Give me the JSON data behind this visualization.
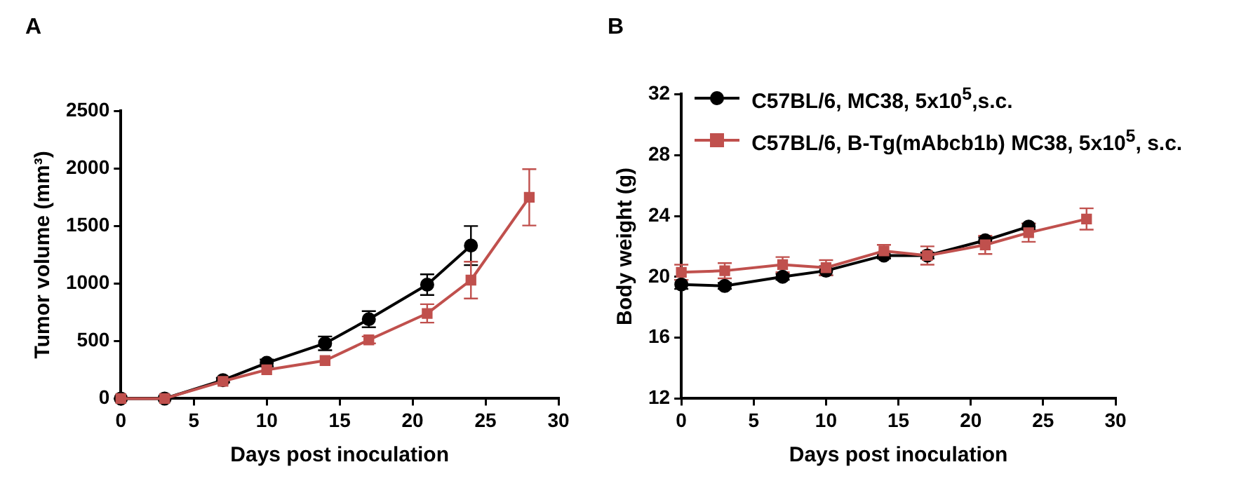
{
  "chart_data": [
    {
      "type": "line",
      "title": "A",
      "xlabel": "Days post inoculation",
      "ylabel": "Tumor volume (mm³)",
      "xlim": [
        0,
        30
      ],
      "xticks": [
        0,
        5,
        10,
        15,
        20,
        25,
        30
      ],
      "ylim": [
        0,
        2500
      ],
      "yticks": [
        0,
        500,
        1000,
        1500,
        2000,
        2500
      ],
      "grid": false,
      "legend": false,
      "series": [
        {
          "color": "#000000",
          "marker": "circle",
          "x": [
            0,
            3,
            7,
            10,
            14,
            17,
            21,
            24
          ],
          "values": [
            0,
            0,
            160,
            310,
            480,
            690,
            990,
            1330
          ],
          "errors": [
            null,
            null,
            20,
            30,
            60,
            70,
            90,
            170
          ]
        },
        {
          "color": "#c0504d",
          "marker": "square",
          "x": [
            0,
            3,
            7,
            10,
            14,
            17,
            21,
            24,
            28
          ],
          "values": [
            0,
            0,
            150,
            250,
            330,
            510,
            740,
            1030,
            1750
          ],
          "errors": [
            null,
            null,
            null,
            null,
            null,
            30,
            80,
            160,
            245
          ]
        }
      ]
    },
    {
      "type": "line",
      "title": "B",
      "xlabel": "Days post inoculation",
      "ylabel": "Body weight (g)",
      "xlim": [
        0,
        30
      ],
      "xticks": [
        0,
        5,
        10,
        15,
        20,
        25,
        30
      ],
      "ylim": [
        12,
        32
      ],
      "yticks": [
        12,
        16,
        20,
        24,
        28,
        32
      ],
      "grid": false,
      "legend": "top",
      "series": [
        {
          "name": "C57BL/6, MC38, 5x10$^{5}$,s.c.",
          "color": "#000000",
          "marker": "circle",
          "x": [
            0,
            3,
            7,
            10,
            14,
            17,
            21,
            24
          ],
          "values": [
            19.5,
            19.4,
            20.0,
            20.4,
            21.4,
            21.4,
            22.4,
            23.3
          ],
          "errors": [
            0.3,
            0.2,
            0.2,
            0.3,
            0.2,
            0.2,
            0.2,
            0.2
          ]
        },
        {
          "name": "C57BL/6, B-Tg(mAbcb1b) MC38, 5x10$^{5}$, s.c.",
          "color": "#c0504d",
          "marker": "square",
          "x": [
            0,
            3,
            7,
            10,
            14,
            17,
            21,
            24,
            28
          ],
          "values": [
            20.3,
            20.4,
            20.8,
            20.6,
            21.7,
            21.4,
            22.1,
            22.9,
            23.8
          ],
          "errors": [
            0.5,
            0.5,
            0.5,
            0.5,
            0.4,
            0.6,
            0.6,
            0.6,
            0.7
          ]
        }
      ]
    }
  ]
}
